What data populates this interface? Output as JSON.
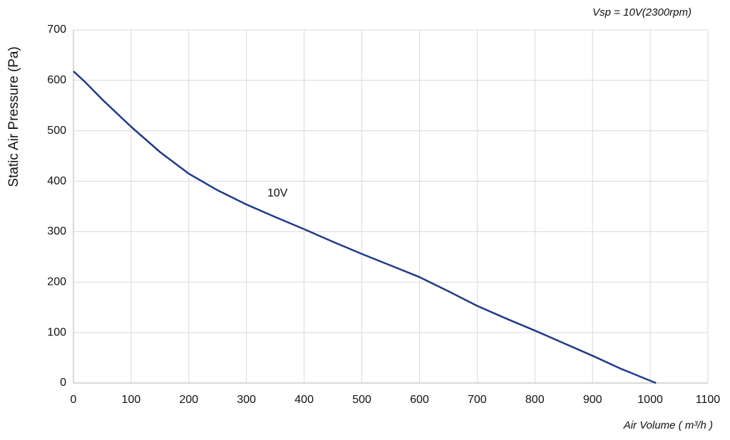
{
  "chart_data": {
    "type": "line",
    "subtitle": "Vsp = 10V(2300rpm)",
    "x_label": "Air Volume ( m³/h )",
    "y_label": "Static Air Pressure  (Pa)",
    "x": [
      0,
      20,
      50,
      100,
      150,
      200,
      250,
      300,
      350,
      400,
      450,
      500,
      550,
      600,
      650,
      700,
      750,
      800,
      850,
      900,
      950,
      1010
    ],
    "series": [
      {
        "name": "10V",
        "color": "#1f3a8a",
        "values": [
          618,
          597,
          562,
          508,
          458,
          415,
          382,
          354,
          329,
          305,
          280,
          256,
          233,
          210,
          182,
          153,
          128,
          104,
          79,
          54,
          28,
          0
        ]
      }
    ],
    "xlim": [
      0,
      1100
    ],
    "xticks": [
      0,
      100,
      200,
      300,
      400,
      500,
      600,
      700,
      800,
      900,
      1000,
      1100
    ],
    "ylim": [
      0,
      700
    ],
    "yticks": [
      0,
      100,
      200,
      300,
      400,
      500,
      600,
      700
    ],
    "grid": true
  }
}
